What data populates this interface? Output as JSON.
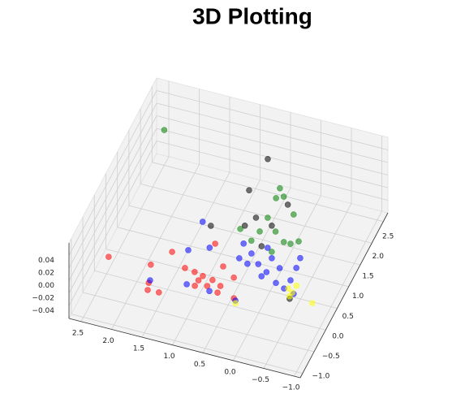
{
  "chart_data": {
    "type": "scatter3d",
    "title": "3D Plotting",
    "xlim": [
      -1.1,
      2.7
    ],
    "ylim": [
      -1.1,
      2.7
    ],
    "zlim": [
      -0.06,
      0.06
    ],
    "xticks": [
      {
        "value": -1.0,
        "label": "−1.0"
      },
      {
        "value": -0.5,
        "label": "−0.5"
      },
      {
        "value": 0.0,
        "label": "0.0"
      },
      0.5,
      {
        "value": 1.0,
        "label": "1.0"
      },
      1.5,
      {
        "value": 2.0,
        "label": "2.0"
      },
      2.5
    ],
    "yticks": [
      {
        "value": -1.0,
        "label": "−1.0"
      },
      {
        "value": -0.5,
        "label": "−0.5"
      },
      {
        "value": 0.0,
        "label": "0.0"
      },
      0.5,
      {
        "value": 1.0,
        "label": "1.0"
      },
      1.5,
      {
        "value": 2.0,
        "label": "2.0"
      },
      2.5
    ],
    "zticks": [
      {
        "value": -0.04,
        "label": "−0.04"
      },
      {
        "value": -0.02,
        "label": "−0.02"
      },
      {
        "value": 0.0,
        "label": "0.00"
      },
      0.02,
      0.04
    ],
    "grid": true,
    "series": [
      {
        "color": "#ff0000",
        "x": [
          2.31,
          1.64,
          1.53,
          1.49,
          1.31,
          1.43,
          1.12,
          0.95,
          0.83,
          0.8,
          0.66,
          0.63,
          0.46,
          0.47,
          0.58,
          0.87,
          0.34,
          0.84,
          0.18
        ],
        "y": [
          -0.41,
          -0.35,
          -0.73,
          -0.88,
          -0.87,
          0.02,
          -0.24,
          -0.27,
          -0.42,
          -0.31,
          -0.49,
          -0.34,
          -0.57,
          -0.42,
          -0.01,
          0.41,
          -0.18,
          -0.55,
          -0.6
        ],
        "z": [
          0,
          0,
          0,
          0,
          0,
          0,
          0,
          0,
          0,
          0,
          0,
          0,
          0,
          0,
          0,
          0,
          0,
          0,
          0
        ]
      },
      {
        "color": "#0000ff",
        "x": [
          1.22,
          1.21,
          0.92,
          1.53,
          0.97,
          0.59,
          0.14,
          0.46,
          0.27,
          0.09,
          -0.09,
          -0.06,
          -0.25,
          -0.31,
          -0.47,
          -0.5,
          -0.49,
          -0.47,
          -0.05,
          0.25,
          0.41,
          0.08,
          -0.65
        ],
        "y": [
          0.79,
          0.14,
          0.3,
          -0.67,
          -0.56,
          -0.58,
          -0.64,
          0.56,
          0.4,
          0.22,
          0.1,
          0.41,
          0.25,
          -0.07,
          -0.14,
          0.06,
          0.34,
          0.56,
          -0.01,
          0.17,
          0.24,
          0.6,
          -0.2
        ],
        "z": [
          0,
          0,
          0,
          0,
          0,
          0,
          0,
          0,
          0,
          0,
          0,
          0,
          0,
          0,
          0,
          0,
          0,
          0,
          0,
          0,
          0,
          0,
          0
        ]
      },
      {
        "color": "#008000",
        "x": [
          2.48,
          0.36,
          0.34,
          0.24,
          -0.04,
          0.31,
          0.32,
          0.09,
          -0.11,
          -0.22,
          0.37,
          0.62,
          -0.32,
          -0.01
        ],
        "y": [
          2.45,
          1.87,
          1.65,
          1.72,
          1.41,
          1.21,
          0.89,
          0.97,
          0.8,
          0.8,
          0.66,
          0.84,
          0.89,
          0.54
        ],
        "z": [
          0,
          0,
          0,
          0,
          0,
          0,
          0,
          0,
          0,
          0,
          0,
          0,
          0,
          0
        ]
      },
      {
        "color": "#000000",
        "x": [
          0.76,
          0.79,
          1.07,
          0.58,
          0.48,
          0.19,
          0.12,
          0.18,
          -0.63
        ],
        "y": [
          2.4,
          1.67,
          0.75,
          0.93,
          1.15,
          1.07,
          1.58,
          0.6,
          -0.32
        ],
        "z": [
          0,
          0,
          0,
          0,
          0,
          0,
          0,
          0,
          0
        ]
      },
      {
        "color": "#ffff00",
        "x": [
          -0.53,
          -0.62,
          -0.63,
          -0.61,
          -0.99,
          0.12
        ],
        "y": [
          -0.12,
          -0.18,
          -0.02,
          -0.27,
          -0.29,
          -0.69
        ],
        "z": [
          0,
          0,
          0,
          0,
          0,
          0
        ]
      }
    ]
  }
}
